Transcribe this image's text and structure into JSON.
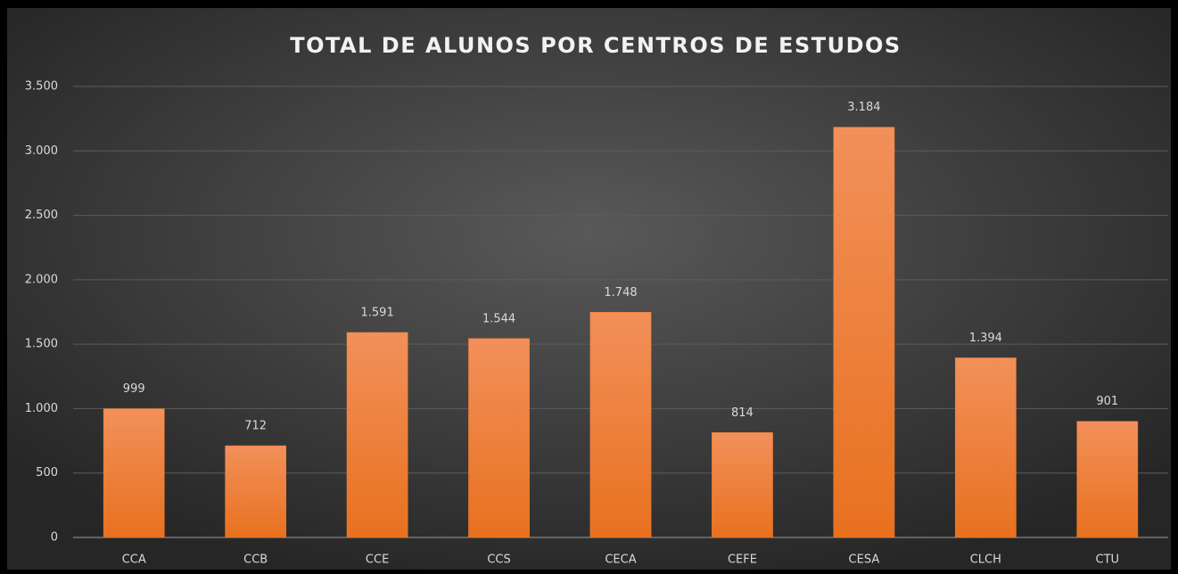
{
  "chart_data": {
    "type": "bar",
    "title": "TOTAL DE ALUNOS POR CENTROS DE ESTUDOS",
    "categories": [
      "CCA",
      "CCB",
      "CCE",
      "CCS",
      "CECA",
      "CEFE",
      "CESA",
      "CLCH",
      "CTU"
    ],
    "values": [
      999,
      712,
      1591,
      1544,
      1748,
      814,
      3184,
      1394,
      901
    ],
    "value_labels": [
      "999",
      "712",
      "1.591",
      "1.544",
      "1.748",
      "814",
      "3.184",
      "1.394",
      "901"
    ],
    "color": "#ED7D31",
    "ylim": [
      0,
      3500
    ],
    "yticks": [
      0,
      500,
      {
        "value": 1000,
        "label": "1.000"
      },
      {
        "value": 1500,
        "label": "1.500"
      },
      {
        "value": 2000,
        "label": "2.000"
      },
      {
        "value": 2500,
        "label": "2.500"
      },
      {
        "value": 3000,
        "label": "3.000"
      },
      {
        "value": 3500,
        "label": "3.500"
      }
    ],
    "grid": true
  }
}
